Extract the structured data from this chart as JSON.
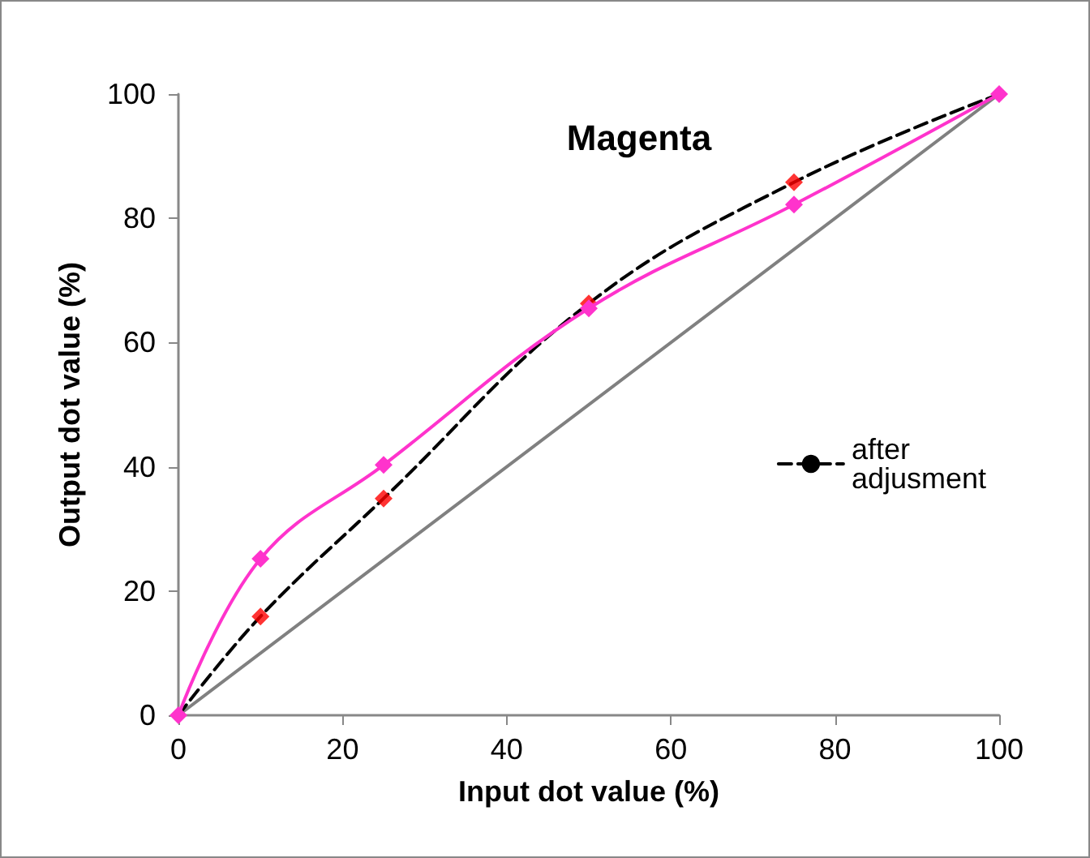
{
  "chart_data": {
    "type": "line",
    "title": "Magenta",
    "xlabel": "Input dot value (%)",
    "ylabel": "Output dot value (%)",
    "x": [
      0,
      10,
      25,
      50,
      75,
      100
    ],
    "series": [
      {
        "color": "#808080",
        "x": [
          0,
          100
        ],
        "values": [
          0,
          100
        ],
        "marker": "none",
        "line_style": "solid"
      },
      {
        "color": "#ff33cc",
        "values": [
          0,
          25.2,
          40.3,
          65.5,
          82.2,
          100
        ],
        "marker": "diamond",
        "line_style": "solid"
      },
      {
        "name": "after adjusment",
        "color": "#000000",
        "values": [
          0,
          15.9,
          34.9,
          66.3,
          85.8,
          100
        ],
        "marker": "none",
        "line_style": "dashed"
      },
      {
        "type": "scatter",
        "color": "#ff0000",
        "values": [
          null,
          15.9,
          34.9,
          66.3,
          85.8,
          null
        ],
        "marker": "diamond"
      }
    ],
    "xlim": [
      0,
      100
    ],
    "xticks": [
      0,
      20,
      40,
      60,
      80,
      100
    ],
    "ylim": [
      0,
      100
    ],
    "yticks": [
      0,
      20,
      40,
      60,
      80,
      100
    ],
    "grid": false,
    "legend": "right"
  }
}
